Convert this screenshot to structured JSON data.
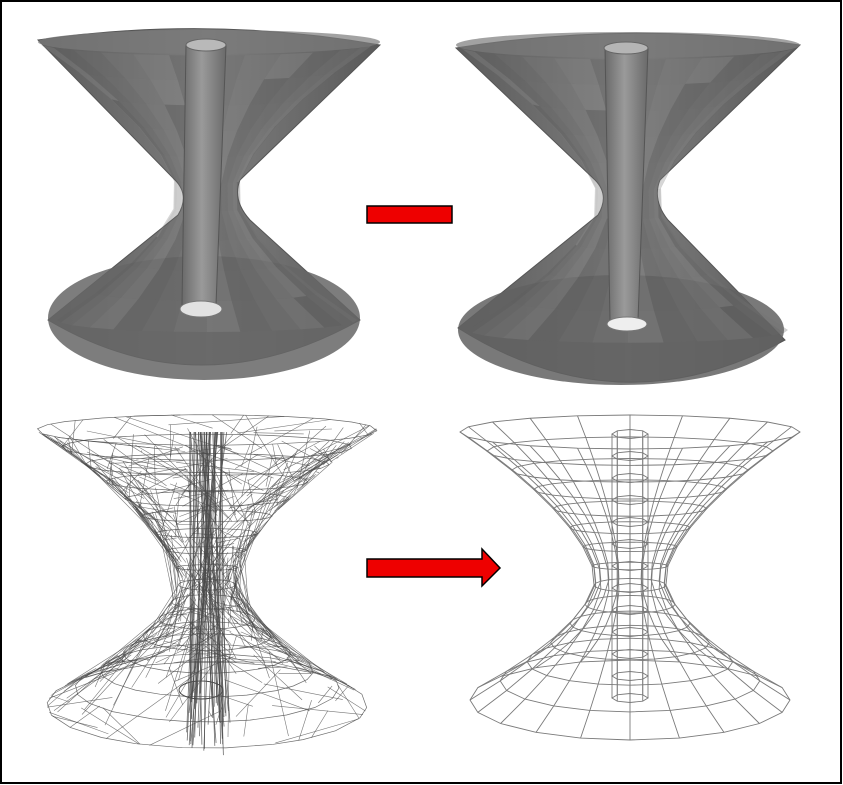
{
  "figure": {
    "panels": [
      {
        "name": "shaded-mesh-before",
        "style": "shaded"
      },
      {
        "name": "shaded-mesh-after",
        "style": "shaded"
      },
      {
        "name": "wireframe-mesh-before",
        "style": "wireframe-dense"
      },
      {
        "name": "wireframe-mesh-after",
        "style": "wireframe-clean"
      }
    ],
    "arrows": [
      {
        "name": "top-arrow",
        "style": "bar",
        "color": "#ee0000"
      },
      {
        "name": "bottom-arrow",
        "style": "arrow",
        "color": "#ee0000"
      }
    ],
    "colors": {
      "frame": "#000000",
      "shaded_fill": "#6e6e6e",
      "wire_dense": "#4a4a4a",
      "wire_clean": "#7a7a7a",
      "arrow_fill": "#ee0000",
      "arrow_stroke": "#000000"
    }
  }
}
